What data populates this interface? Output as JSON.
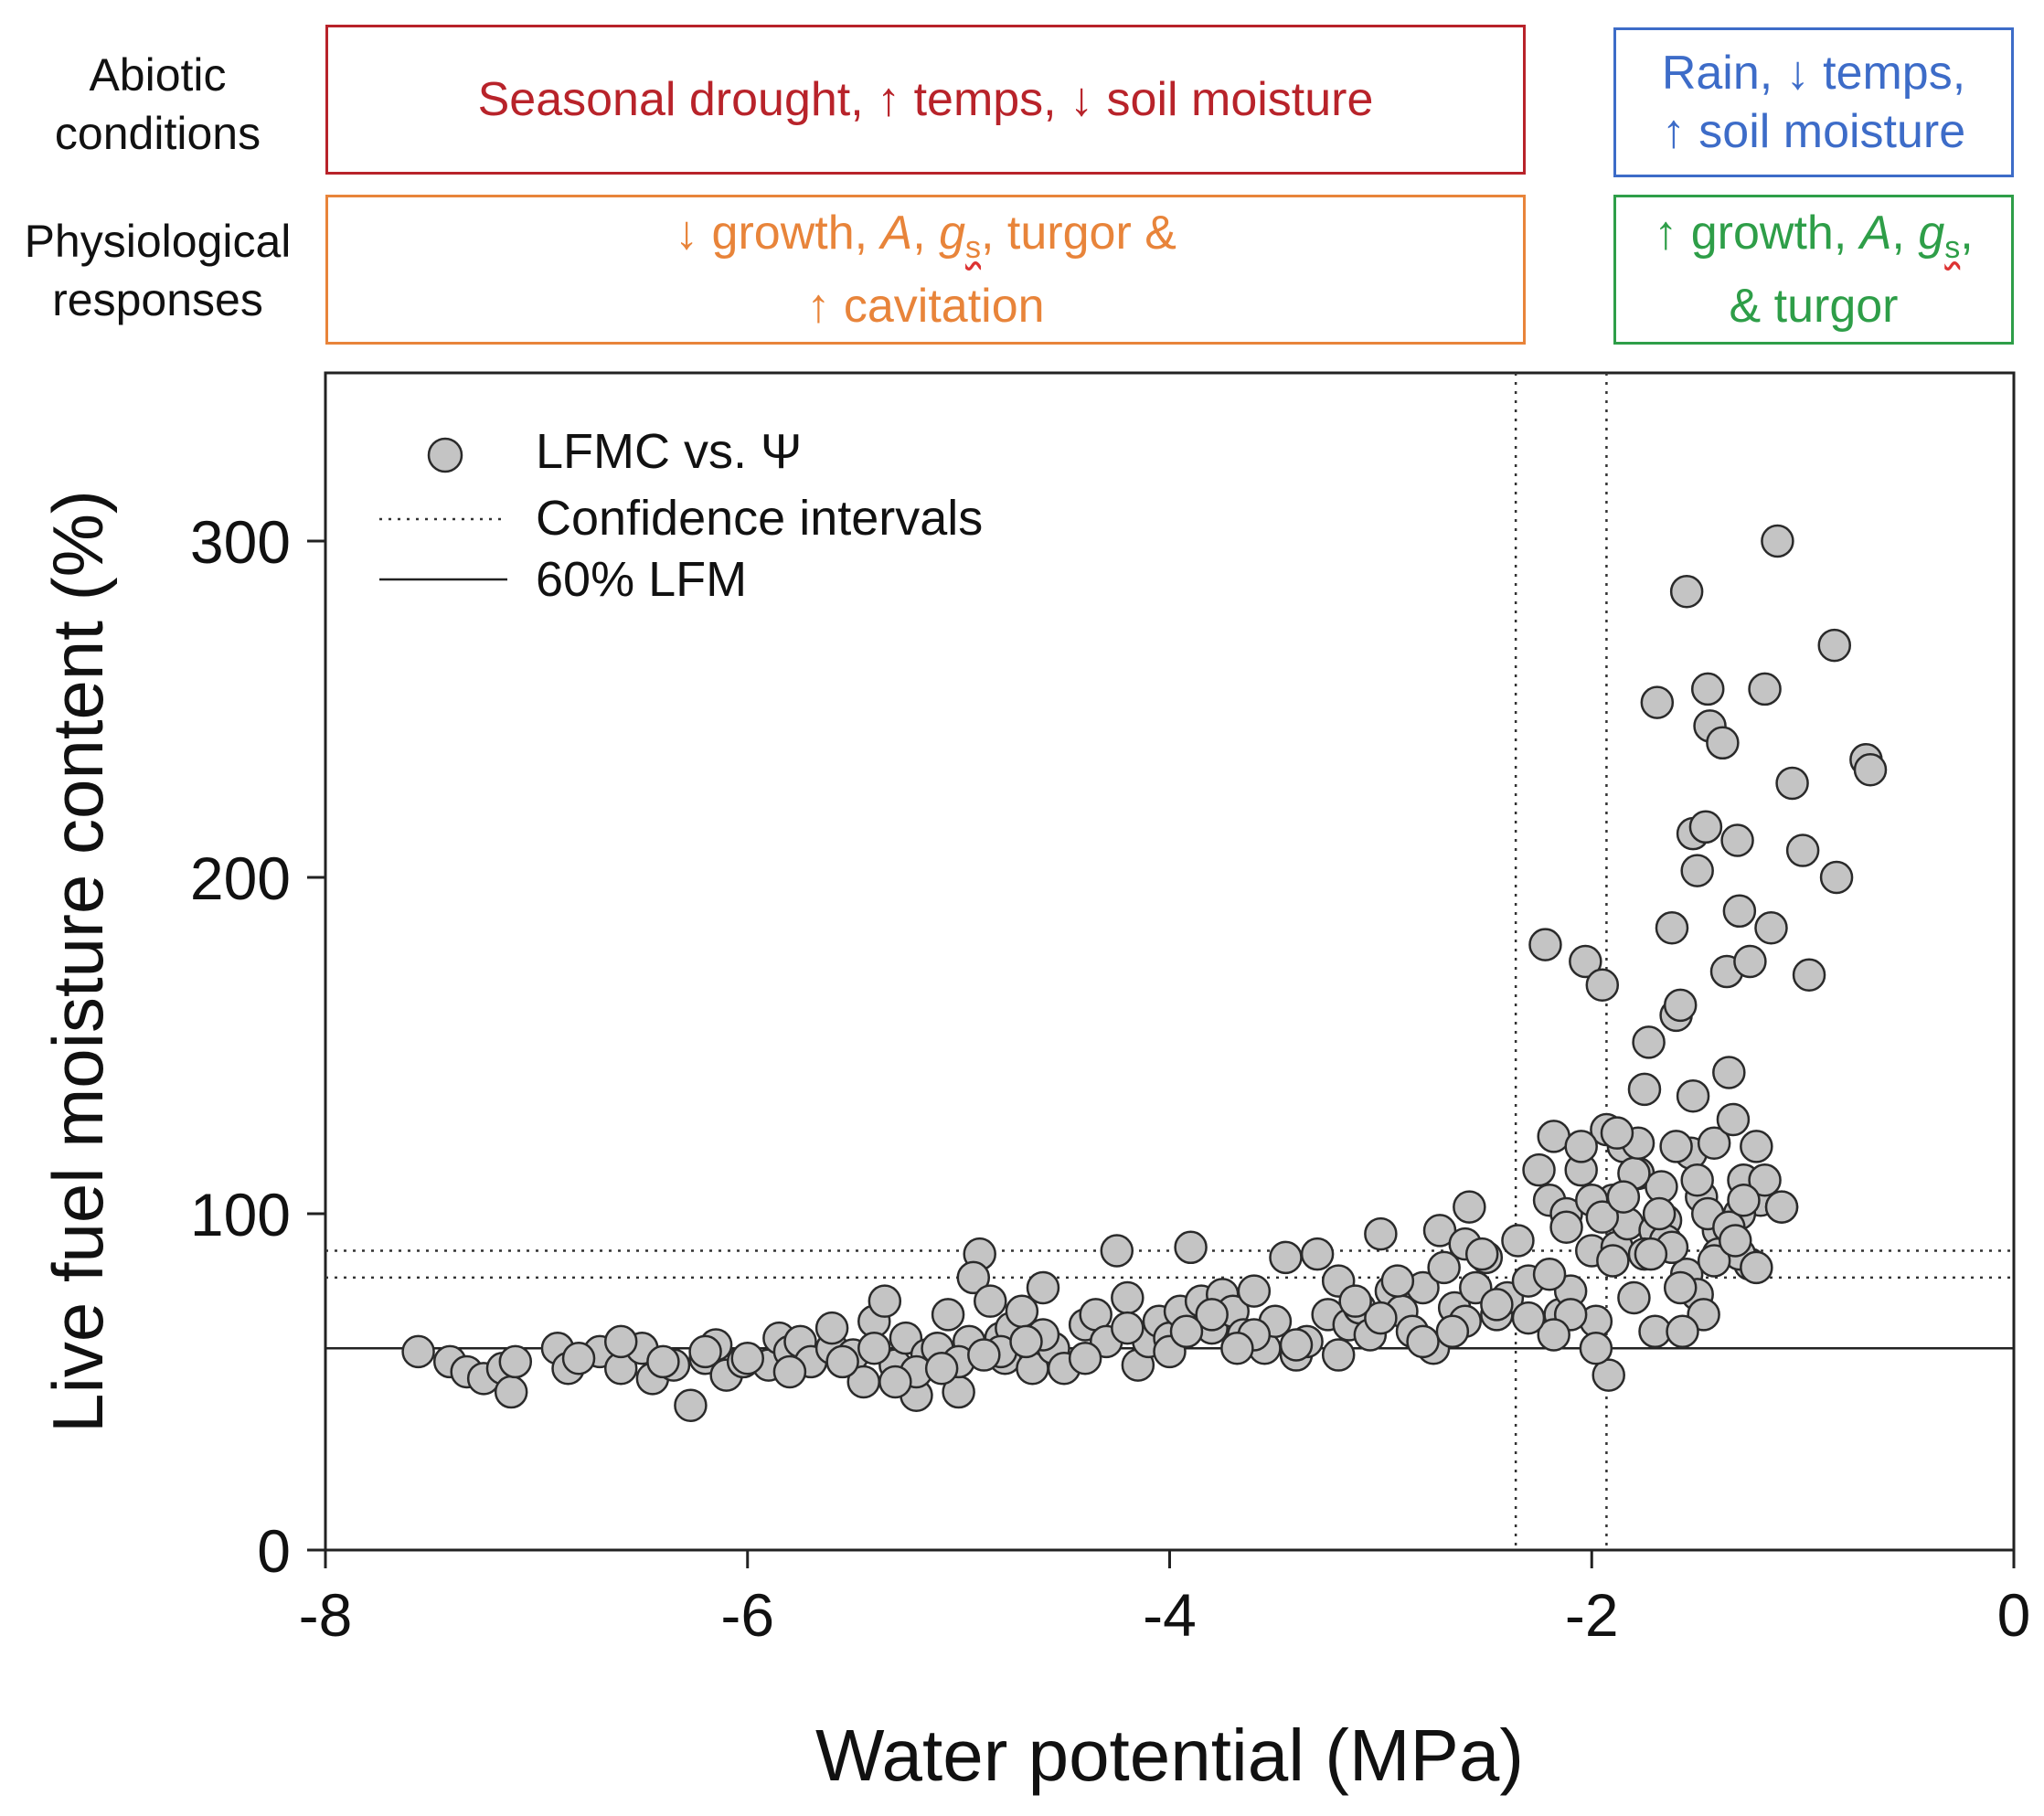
{
  "colors": {
    "abiotic_drought": "#b8232a",
    "abiotic_rain": "#3d6cc8",
    "physio_drought": "#e8843a",
    "physio_rain": "#2e9e48",
    "marker_fill": "#c4c4c4",
    "marker_stroke": "#2a2a2a"
  },
  "header": {
    "abiotic_label_1": "Abiotic",
    "abiotic_label_2": "conditions",
    "physio_label_1": "Physiological",
    "physio_label_2": "responses",
    "drought_abiotic": "Seasonal drought, ↑ temps, ↓ soil moisture",
    "rain_abiotic_1": "Rain, ↓ temps,",
    "rain_abiotic_2": "↑ soil moisture",
    "drought_physio_a": "↓ growth, ",
    "drought_physio_A": "A",
    "drought_physio_sep1": ", ",
    "drought_physio_g": "g",
    "drought_physio_s": "s",
    "drought_physio_b": ", turgor &",
    "drought_physio_2": "↑ cavitation",
    "rain_physio_a": "↑ growth, ",
    "rain_physio_A": "A",
    "rain_physio_sep1": ", ",
    "rain_physio_g": "g",
    "rain_physio_s": "s",
    "rain_physio_b": ",",
    "rain_physio_2": "& turgor"
  },
  "chart_data": {
    "type": "scatter",
    "xlabel": "Water potential (MPa)",
    "ylabel": "Live fuel moisture content (%)",
    "xlim": [
      -8,
      0
    ],
    "ylim": [
      0,
      350
    ],
    "xticks": [
      -8,
      -6,
      -4,
      -2,
      0
    ],
    "yticks": [
      0,
      100,
      200,
      300
    ],
    "legend": {
      "position": "top-left",
      "entries": [
        "LFMC vs. Ψ",
        "Confidence intervals",
        "60% LFM"
      ]
    },
    "reference_lines": {
      "lfm_60": 60,
      "ci_y": [
        81,
        89
      ],
      "ci_x": [
        -2.36,
        -1.93
      ]
    },
    "series": [
      {
        "name": "LFMC vs. Ψ",
        "points": [
          [
            -7.56,
            59
          ],
          [
            -7.41,
            56
          ],
          [
            -7.33,
            53
          ],
          [
            -7.25,
            51
          ],
          [
            -7.16,
            54
          ],
          [
            -7.12,
            47
          ],
          [
            -7.1,
            56
          ],
          [
            -6.9,
            60
          ],
          [
            -6.85,
            54
          ],
          [
            -6.7,
            59
          ],
          [
            -6.6,
            54
          ],
          [
            -6.5,
            60
          ],
          [
            -6.45,
            51
          ],
          [
            -6.35,
            55
          ],
          [
            -6.27,
            43
          ],
          [
            -6.2,
            57
          ],
          [
            -6.15,
            61
          ],
          [
            -6.1,
            52
          ],
          [
            -6.02,
            56
          ],
          [
            -5.9,
            55
          ],
          [
            -5.85,
            63
          ],
          [
            -5.8,
            59
          ],
          [
            -5.75,
            62
          ],
          [
            -5.7,
            56
          ],
          [
            -5.6,
            60
          ],
          [
            -5.5,
            58
          ],
          [
            -5.45,
            50
          ],
          [
            -5.4,
            68
          ],
          [
            -5.35,
            74
          ],
          [
            -5.3,
            55
          ],
          [
            -5.25,
            63
          ],
          [
            -5.2,
            46
          ],
          [
            -5.15,
            58
          ],
          [
            -5.1,
            60
          ],
          [
            -5.05,
            70
          ],
          [
            -5.0,
            47
          ],
          [
            -4.95,
            62
          ],
          [
            -4.9,
            88
          ],
          [
            -4.93,
            81
          ],
          [
            -4.85,
            74
          ],
          [
            -4.8,
            63
          ],
          [
            -4.78,
            57
          ],
          [
            -4.75,
            66
          ],
          [
            -4.7,
            71
          ],
          [
            -4.65,
            54
          ],
          [
            -4.6,
            78
          ],
          [
            -4.55,
            60
          ],
          [
            -4.5,
            54
          ],
          [
            -4.4,
            67
          ],
          [
            -4.35,
            70
          ],
          [
            -4.3,
            62
          ],
          [
            -4.25,
            89
          ],
          [
            -4.2,
            75
          ],
          [
            -4.15,
            55
          ],
          [
            -4.1,
            62
          ],
          [
            -4.05,
            68
          ],
          [
            -4.0,
            63
          ],
          [
            -3.95,
            71
          ],
          [
            -3.9,
            90
          ],
          [
            -3.85,
            74
          ],
          [
            -3.8,
            66
          ],
          [
            -3.75,
            76
          ],
          [
            -3.7,
            71
          ],
          [
            -3.65,
            64
          ],
          [
            -3.6,
            77
          ],
          [
            -3.55,
            60
          ],
          [
            -3.5,
            68
          ],
          [
            -3.45,
            87
          ],
          [
            -3.4,
            58
          ],
          [
            -3.35,
            62
          ],
          [
            -3.3,
            88
          ],
          [
            -3.25,
            70
          ],
          [
            -3.2,
            80
          ],
          [
            -3.15,
            67
          ],
          [
            -3.1,
            72
          ],
          [
            -3.05,
            64
          ],
          [
            -3.0,
            94
          ],
          [
            -2.95,
            77
          ],
          [
            -2.9,
            71
          ],
          [
            -2.85,
            65
          ],
          [
            -2.8,
            78
          ],
          [
            -2.75,
            60
          ],
          [
            -2.72,
            95
          ],
          [
            -2.7,
            84
          ],
          [
            -2.65,
            72
          ],
          [
            -2.6,
            91
          ],
          [
            -2.58,
            102
          ],
          [
            -2.55,
            78
          ],
          [
            -2.5,
            87
          ],
          [
            -2.45,
            70
          ],
          [
            -2.4,
            75
          ],
          [
            -2.35,
            92
          ],
          [
            -2.3,
            80
          ],
          [
            -2.25,
            113
          ],
          [
            -2.22,
            180
          ],
          [
            -2.2,
            104
          ],
          [
            -2.18,
            123
          ],
          [
            -2.15,
            70
          ],
          [
            -2.12,
            100
          ],
          [
            -2.1,
            77
          ],
          [
            -2.05,
            113
          ],
          [
            -2.03,
            175
          ],
          [
            -2.0,
            89
          ],
          [
            -1.98,
            68
          ],
          [
            -1.95,
            168
          ],
          [
            -1.93,
            125
          ],
          [
            -1.92,
            52
          ],
          [
            -1.9,
            104
          ],
          [
            -1.88,
            90
          ],
          [
            -1.85,
            120
          ],
          [
            -1.83,
            97
          ],
          [
            -1.8,
            75
          ],
          [
            -1.78,
            112
          ],
          [
            -1.75,
            137
          ],
          [
            -1.73,
            151
          ],
          [
            -1.7,
            65
          ],
          [
            -1.69,
            252
          ],
          [
            -1.67,
            108
          ],
          [
            -1.65,
            98
          ],
          [
            -1.62,
            185
          ],
          [
            -1.6,
            159
          ],
          [
            -1.58,
            162
          ],
          [
            -1.55,
            285
          ],
          [
            -1.53,
            118
          ],
          [
            -1.52,
            213
          ],
          [
            -1.5,
            202
          ],
          [
            -1.48,
            105
          ],
          [
            -1.46,
            215
          ],
          [
            -1.45,
            256
          ],
          [
            -1.44,
            245
          ],
          [
            -1.42,
            121
          ],
          [
            -1.4,
            95
          ],
          [
            -1.38,
            240
          ],
          [
            -1.36,
            172
          ],
          [
            -1.35,
            142
          ],
          [
            -1.33,
            128
          ],
          [
            -1.31,
            211
          ],
          [
            -1.3,
            190
          ],
          [
            -1.28,
            110
          ],
          [
            -1.25,
            175
          ],
          [
            -1.22,
            120
          ],
          [
            -1.2,
            104
          ],
          [
            -1.18,
            256
          ],
          [
            -1.15,
            185
          ],
          [
            -1.12,
            300
          ],
          [
            -1.1,
            102
          ],
          [
            -1.05,
            228
          ],
          [
            -1.0,
            208
          ],
          [
            -0.97,
            171
          ],
          [
            -0.85,
            269
          ],
          [
            -0.84,
            200
          ],
          [
            -0.7,
            235
          ],
          [
            -0.68,
            232
          ],
          [
            -1.3,
            100
          ],
          [
            -1.4,
            88
          ],
          [
            -1.55,
            82
          ],
          [
            -1.25,
            85
          ],
          [
            -1.5,
            76
          ],
          [
            -1.7,
            95
          ],
          [
            -1.6,
            120
          ],
          [
            -1.8,
            112
          ],
          [
            -1.9,
            86
          ],
          [
            -2.0,
            104
          ],
          [
            -2.1,
            70
          ],
          [
            -2.2,
            82
          ],
          [
            -1.95,
            99
          ],
          [
            -1.85,
            105
          ],
          [
            -1.75,
            88
          ],
          [
            -1.65,
            92
          ],
          [
            -1.45,
            100
          ],
          [
            -1.35,
            96
          ],
          [
            -1.3,
            88
          ],
          [
            -1.22,
            84
          ],
          [
            -1.1,
            102
          ],
          [
            -1.5,
            110
          ],
          [
            -1.52,
            135
          ],
          [
            -1.62,
            90
          ],
          [
            -1.78,
            121
          ],
          [
            -1.88,
            124
          ],
          [
            -2.05,
            120
          ],
          [
            -2.12,
            96
          ],
          [
            -1.98,
            60
          ],
          [
            -2.18,
            64
          ],
          [
            -2.3,
            69
          ],
          [
            -2.45,
            73
          ],
          [
            -2.6,
            68
          ],
          [
            -2.8,
            62
          ],
          [
            -3.0,
            69
          ],
          [
            -3.2,
            58
          ],
          [
            -3.4,
            61
          ],
          [
            -3.6,
            64
          ],
          [
            -3.8,
            70
          ],
          [
            -4.0,
            59
          ],
          [
            -4.2,
            66
          ],
          [
            -4.4,
            57
          ],
          [
            -4.6,
            64
          ],
          [
            -4.8,
            59
          ],
          [
            -5.0,
            56
          ],
          [
            -5.2,
            53
          ],
          [
            -5.4,
            60
          ],
          [
            -5.6,
            66
          ],
          [
            -5.8,
            53
          ],
          [
            -6.0,
            57
          ],
          [
            -6.2,
            59
          ],
          [
            -6.4,
            56
          ],
          [
            -6.6,
            62
          ],
          [
            -6.8,
            57
          ],
          [
            -5.55,
            56
          ],
          [
            -5.3,
            50
          ],
          [
            -5.08,
            54
          ],
          [
            -4.88,
            58
          ],
          [
            -4.68,
            62
          ],
          [
            -3.92,
            65
          ],
          [
            -3.68,
            60
          ],
          [
            -3.12,
            74
          ],
          [
            -2.92,
            80
          ],
          [
            -2.66,
            65
          ],
          [
            -2.52,
            88
          ],
          [
            -1.58,
            78
          ],
          [
            -1.68,
            100
          ],
          [
            -1.42,
            86
          ],
          [
            -1.72,
            88
          ],
          [
            -1.32,
            92
          ],
          [
            -1.18,
            110
          ],
          [
            -1.28,
            104
          ],
          [
            -1.47,
            70
          ],
          [
            -1.57,
            65
          ]
        ]
      }
    ]
  }
}
